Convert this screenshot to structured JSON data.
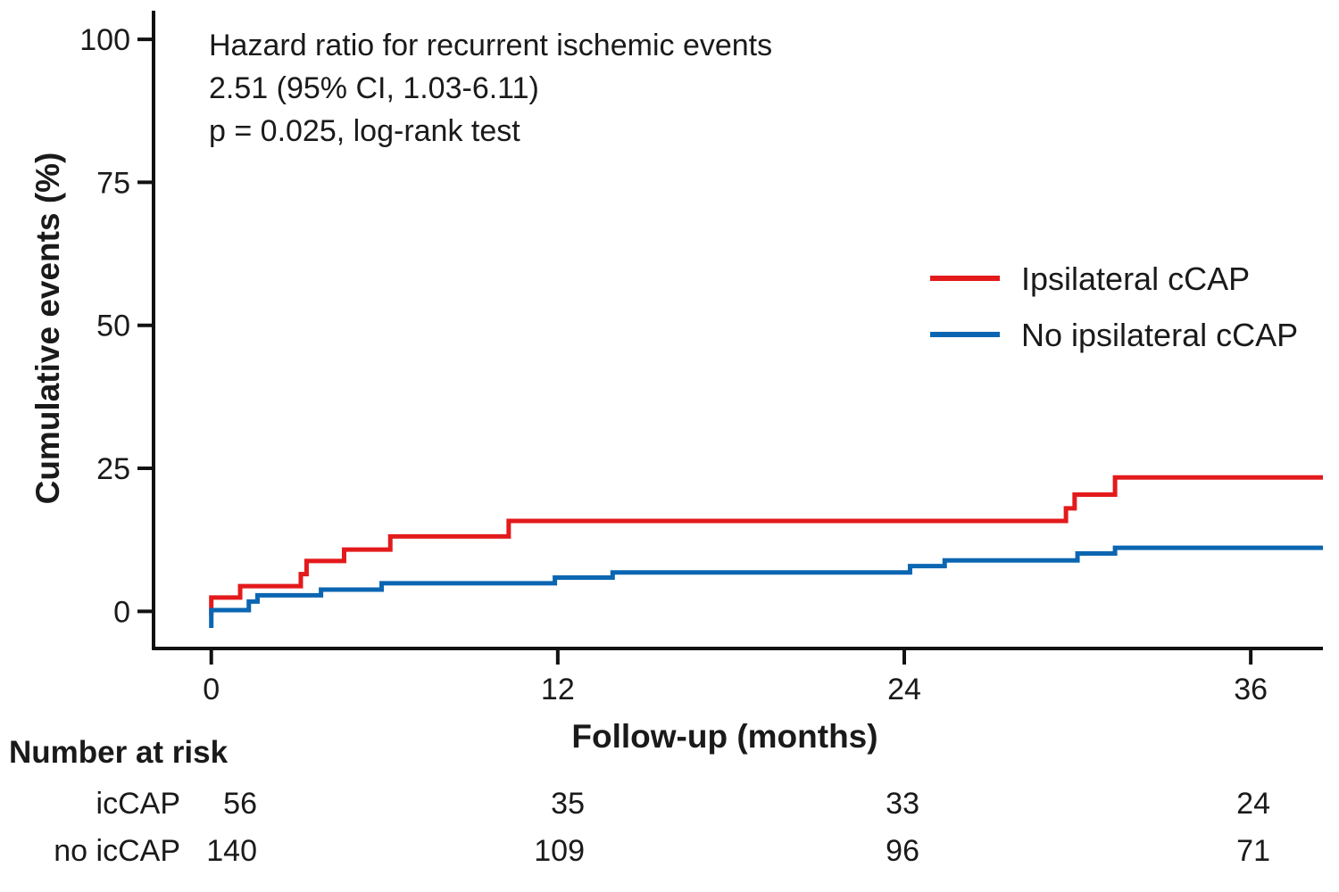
{
  "chart_data": {
    "type": "line",
    "subtype": "kaplan-meier-cumulative-incidence",
    "annotations": [
      "Hazard ratio for recurrent ischemic events",
      "2.51 (95% CI, 1.03-6.11)",
      "p = 0.025, log-rank test"
    ],
    "xlabel": "Follow-up (months)",
    "ylabel": "Cumulative events (%)",
    "xlim": [
      -2,
      38.5
    ],
    "ylim": [
      -6.5,
      105
    ],
    "xticks": [
      0,
      12,
      24,
      36
    ],
    "yticks": [
      0,
      25,
      50,
      75,
      100
    ],
    "legend_position": "right",
    "grid": false,
    "series": [
      {
        "name": "Ipsilateral cCAP",
        "color": "#e31a1c",
        "steps": [
          [
            0,
            2.4
          ],
          [
            1.0,
            4.4
          ],
          [
            3.1,
            6.5
          ],
          [
            3.3,
            8.8
          ],
          [
            4.6,
            10.8
          ],
          [
            6.2,
            13.1
          ],
          [
            10.3,
            15.8
          ],
          [
            29.6,
            18.0
          ],
          [
            29.9,
            20.4
          ],
          [
            31.3,
            23.4
          ],
          [
            38.5,
            23.4
          ]
        ]
      },
      {
        "name": "No ipsilateral cCAP",
        "color": "#0b66b2",
        "steps": [
          [
            0,
            0.2
          ],
          [
            1.3,
            1.7
          ],
          [
            1.6,
            2.8
          ],
          [
            3.8,
            3.8
          ],
          [
            5.9,
            4.9
          ],
          [
            11.9,
            5.9
          ],
          [
            13.9,
            6.8
          ],
          [
            24.2,
            7.9
          ],
          [
            25.4,
            8.9
          ],
          [
            30.0,
            10.1
          ],
          [
            31.3,
            11.1
          ],
          [
            38.5,
            11.1
          ]
        ]
      }
    ],
    "risk_table": {
      "title": "Number at risk",
      "times": [
        0,
        12,
        24,
        36
      ],
      "rows": [
        {
          "label": "icCAP",
          "values": [
            "56",
            "35",
            "33",
            "24"
          ]
        },
        {
          "label": "no icCAP",
          "values": [
            "140",
            "109",
            "96",
            "71"
          ]
        }
      ]
    }
  }
}
